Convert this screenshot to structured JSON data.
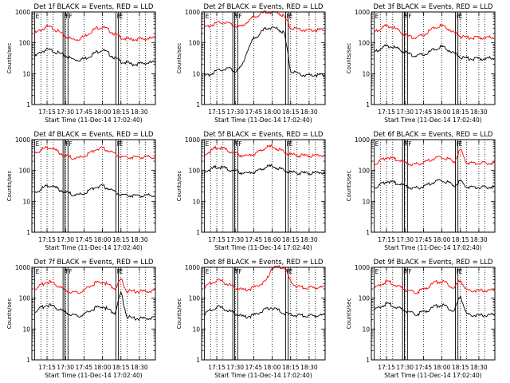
{
  "figure": {
    "ylabel": "Counts/sec",
    "xlabel": "Start Time (11-Dec-14 17:02:40)",
    "x_tick_labels": [
      "17:15",
      "17:30",
      "17:45",
      "18:00",
      "18:15",
      "18:30"
    ],
    "y_tick_labels": [
      "1",
      "10",
      "100",
      "1000"
    ],
    "event_marker_letters": [
      "E",
      "F",
      "F",
      "F",
      "E"
    ],
    "colors": {
      "events": "#000000",
      "lld": "#ff0000",
      "marker": "#000000"
    }
  },
  "chart_data": [
    {
      "type": "line",
      "title": "Det 1f BLACK = Events, RED = LLD",
      "xlabel": "Start Time (11-Dec-14 17:02:40)",
      "ylabel": "Counts/sec",
      "yscale": "log",
      "ylim": [
        1,
        1000
      ],
      "xlim": [
        "17:02:40",
        "18:43:00"
      ],
      "x": [
        "17:05",
        "17:10",
        "17:15",
        "17:20",
        "17:25",
        "17:30",
        "17:35",
        "17:40",
        "17:45",
        "17:50",
        "17:55",
        "18:00",
        "18:05",
        "18:10",
        "18:15",
        "18:20",
        "18:25",
        "18:30",
        "18:35",
        "18:40"
      ],
      "series": [
        {
          "name": "Events",
          "color": "#000000",
          "values": [
            35,
            50,
            60,
            55,
            45,
            38,
            30,
            28,
            30,
            38,
            50,
            60,
            45,
            32,
            25,
            22,
            20,
            21,
            22,
            23
          ]
        },
        {
          "name": "LLD",
          "color": "#ff0000",
          "values": [
            200,
            260,
            330,
            300,
            220,
            160,
            130,
            130,
            160,
            220,
            300,
            330,
            260,
            190,
            150,
            130,
            130,
            130,
            135,
            140
          ]
        }
      ]
    },
    {
      "type": "line",
      "title": "Det 2f BLACK = Events, RED = LLD",
      "xlabel": "Start Time (11-Dec-14 17:02:40)",
      "ylabel": "Counts/sec",
      "yscale": "log",
      "ylim": [
        1,
        1000
      ],
      "xlim": [
        "17:02:40",
        "18:43:00"
      ],
      "x": [
        "17:05",
        "17:10",
        "17:15",
        "17:20",
        "17:25",
        "17:30",
        "17:35",
        "17:40",
        "17:45",
        "17:50",
        "17:55",
        "18:00",
        "18:05",
        "18:10",
        "18:15",
        "18:20",
        "18:25",
        "18:30",
        "18:35",
        "18:40"
      ],
      "series": [
        {
          "name": "Events",
          "color": "#000000",
          "values": [
            8,
            10,
            12,
            14,
            15,
            12,
            16,
            60,
            140,
            200,
            300,
            320,
            280,
            200,
            12,
            10,
            9,
            9,
            9,
            9
          ]
        },
        {
          "name": "LLD",
          "color": "#ff0000",
          "values": [
            300,
            380,
            420,
            480,
            430,
            350,
            330,
            500,
            700,
            850,
            1000,
            1000,
            950,
            700,
            300,
            270,
            260,
            260,
            260,
            260
          ]
        }
      ]
    },
    {
      "type": "line",
      "title": "Det 3f BLACK = Events, RED = LLD",
      "xlabel": "Start Time (11-Dec-14 17:02:40)",
      "ylabel": "Counts/sec",
      "yscale": "log",
      "ylim": [
        1,
        1000
      ],
      "xlim": [
        "17:02:40",
        "18:43:00"
      ],
      "x": [
        "17:05",
        "17:10",
        "17:15",
        "17:20",
        "17:25",
        "17:30",
        "17:35",
        "17:40",
        "17:45",
        "17:50",
        "17:55",
        "18:00",
        "18:05",
        "18:10",
        "18:15",
        "18:20",
        "18:25",
        "18:30",
        "18:35",
        "18:40"
      ],
      "series": [
        {
          "name": "Events",
          "color": "#000000",
          "values": [
            50,
            65,
            80,
            75,
            60,
            50,
            40,
            38,
            42,
            50,
            65,
            75,
            60,
            45,
            35,
            32,
            30,
            30,
            31,
            32
          ]
        },
        {
          "name": "LLD",
          "color": "#ff0000",
          "values": [
            220,
            290,
            360,
            330,
            240,
            180,
            150,
            150,
            180,
            240,
            330,
            360,
            290,
            210,
            170,
            150,
            145,
            145,
            148,
            150
          ]
        }
      ]
    },
    {
      "type": "line",
      "title": "Det 4f BLACK = Events, RED = LLD",
      "xlabel": "Start Time (11-Dec-14 17:02:40)",
      "ylabel": "Counts/sec",
      "yscale": "log",
      "ylim": [
        1,
        1000
      ],
      "xlim": [
        "17:02:40",
        "18:43:00"
      ],
      "x": [
        "17:05",
        "17:10",
        "17:15",
        "17:20",
        "17:25",
        "17:30",
        "17:35",
        "17:40",
        "17:45",
        "17:50",
        "17:55",
        "18:00",
        "18:05",
        "18:10",
        "18:15",
        "18:20",
        "18:25",
        "18:30",
        "18:35",
        "18:40"
      ],
      "series": [
        {
          "name": "Events",
          "color": "#000000",
          "values": [
            18,
            25,
            32,
            30,
            24,
            20,
            17,
            16,
            18,
            24,
            30,
            32,
            26,
            20,
            17,
            16,
            15,
            15,
            15,
            16
          ]
        },
        {
          "name": "LLD",
          "color": "#ff0000",
          "values": [
            350,
            460,
            560,
            500,
            380,
            300,
            260,
            250,
            290,
            380,
            500,
            540,
            440,
            340,
            290,
            270,
            265,
            265,
            270,
            275
          ]
        }
      ]
    },
    {
      "type": "line",
      "title": "Det 5f BLACK = Events, RED = LLD",
      "xlabel": "Start Time (11-Dec-14 17:02:40)",
      "ylabel": "Counts/sec",
      "yscale": "log",
      "ylim": [
        1,
        1000
      ],
      "xlim": [
        "17:02:40",
        "18:43:00"
      ],
      "x": [
        "17:05",
        "17:10",
        "17:15",
        "17:20",
        "17:25",
        "17:30",
        "17:35",
        "17:40",
        "17:45",
        "17:50",
        "17:55",
        "18:00",
        "18:05",
        "18:10",
        "18:15",
        "18:20",
        "18:25",
        "18:30",
        "18:35",
        "18:40"
      ],
      "series": [
        {
          "name": "Events",
          "color": "#000000",
          "values": [
            90,
            110,
            130,
            125,
            105,
            95,
            85,
            82,
            90,
            105,
            130,
            140,
            120,
            100,
            88,
            84,
            82,
            82,
            84,
            85
          ]
        },
        {
          "name": "LLD",
          "color": "#ff0000",
          "values": [
            320,
            430,
            560,
            520,
            420,
            350,
            310,
            300,
            340,
            430,
            560,
            600,
            500,
            390,
            330,
            310,
            300,
            300,
            305,
            310
          ]
        }
      ]
    },
    {
      "type": "line",
      "title": "Det 6f BLACK = Events, RED = LLD",
      "xlabel": "Start Time (11-Dec-14 17:02:40)",
      "ylabel": "Counts/sec",
      "yscale": "log",
      "ylim": [
        1,
        1000
      ],
      "xlim": [
        "17:02:40",
        "18:43:00"
      ],
      "x": [
        "17:05",
        "17:10",
        "17:15",
        "17:20",
        "17:25",
        "17:30",
        "17:35",
        "17:40",
        "17:45",
        "17:50",
        "17:55",
        "18:00",
        "18:05",
        "18:10",
        "18:15",
        "18:20",
        "18:25",
        "18:30",
        "18:35",
        "18:40"
      ],
      "series": [
        {
          "name": "Events",
          "color": "#000000",
          "values": [
            28,
            35,
            45,
            42,
            36,
            32,
            28,
            27,
            30,
            36,
            45,
            48,
            40,
            32,
            45,
            30,
            28,
            28,
            28,
            29
          ]
        },
        {
          "name": "LLD",
          "color": "#ff0000",
          "values": [
            160,
            210,
            270,
            250,
            210,
            180,
            160,
            160,
            180,
            210,
            260,
            270,
            230,
            190,
            480,
            180,
            170,
            170,
            170,
            172
          ]
        }
      ]
    },
    {
      "type": "line",
      "title": "Det 7f BLACK = Events, RED = LLD",
      "xlabel": "Start Time (11-Dec-14 17:02:40)",
      "ylabel": "Counts/sec",
      "yscale": "log",
      "ylim": [
        1,
        1000
      ],
      "xlim": [
        "17:02:40",
        "18:43:00"
      ],
      "x": [
        "17:05",
        "17:10",
        "17:15",
        "17:20",
        "17:25",
        "17:30",
        "17:35",
        "17:40",
        "17:45",
        "17:50",
        "17:55",
        "18:00",
        "18:05",
        "18:10",
        "18:15",
        "18:20",
        "18:25",
        "18:30",
        "18:35",
        "18:40"
      ],
      "series": [
        {
          "name": "Events",
          "color": "#000000",
          "values": [
            35,
            48,
            60,
            55,
            42,
            35,
            28,
            26,
            30,
            38,
            50,
            55,
            42,
            32,
            150,
            25,
            22,
            22,
            22,
            23
          ]
        },
        {
          "name": "LLD",
          "color": "#ff0000",
          "values": [
            190,
            260,
            340,
            310,
            230,
            180,
            150,
            150,
            180,
            240,
            320,
            340,
            270,
            200,
            400,
            170,
            165,
            165,
            168,
            170
          ]
        }
      ]
    },
    {
      "type": "line",
      "title": "Det 8f BLACK = Events, RED = LLD",
      "xlabel": "Start Time (11-Dec-14 17:02:40)",
      "ylabel": "Counts/sec",
      "yscale": "log",
      "ylim": [
        1,
        1000
      ],
      "xlim": [
        "17:02:40",
        "18:43:00"
      ],
      "x": [
        "17:05",
        "17:10",
        "17:15",
        "17:20",
        "17:25",
        "17:30",
        "17:35",
        "17:40",
        "17:45",
        "17:50",
        "17:55",
        "18:00",
        "18:05",
        "18:10",
        "18:15",
        "18:20",
        "18:25",
        "18:30",
        "18:35",
        "18:40"
      ],
      "series": [
        {
          "name": "Events",
          "color": "#000000",
          "values": [
            30,
            40,
            52,
            48,
            38,
            32,
            26,
            25,
            28,
            35,
            45,
            50,
            40,
            32,
            30,
            28,
            27,
            27,
            27,
            28
          ]
        },
        {
          "name": "LLD",
          "color": "#ff0000",
          "values": [
            220,
            300,
            380,
            350,
            270,
            220,
            190,
            190,
            220,
            280,
            360,
            1000,
            1000,
            1000,
            350,
            240,
            220,
            220,
            220,
            225
          ]
        }
      ]
    },
    {
      "type": "line",
      "title": "Det 9f BLACK = Events, RED = LLD",
      "xlabel": "Start Time (11-Dec-14 17:02:40)",
      "ylabel": "Counts/sec",
      "yscale": "log",
      "ylim": [
        1,
        1000
      ],
      "xlim": [
        "17:02:40",
        "18:43:00"
      ],
      "x": [
        "17:05",
        "17:10",
        "17:15",
        "17:20",
        "17:25",
        "17:30",
        "17:35",
        "17:40",
        "17:45",
        "17:50",
        "17:55",
        "18:00",
        "18:05",
        "18:10",
        "18:15",
        "18:20",
        "18:25",
        "18:30",
        "18:35",
        "18:40"
      ],
      "series": [
        {
          "name": "Events",
          "color": "#000000",
          "values": [
            40,
            52,
            65,
            60,
            48,
            40,
            33,
            31,
            35,
            43,
            55,
            60,
            48,
            38,
            120,
            30,
            28,
            28,
            28,
            29
          ]
        },
        {
          "name": "LLD",
          "color": "#ff0000",
          "values": [
            200,
            270,
            340,
            310,
            240,
            190,
            160,
            160,
            190,
            250,
            330,
            350,
            280,
            210,
            380,
            180,
            175,
            175,
            178,
            180
          ]
        }
      ]
    }
  ]
}
